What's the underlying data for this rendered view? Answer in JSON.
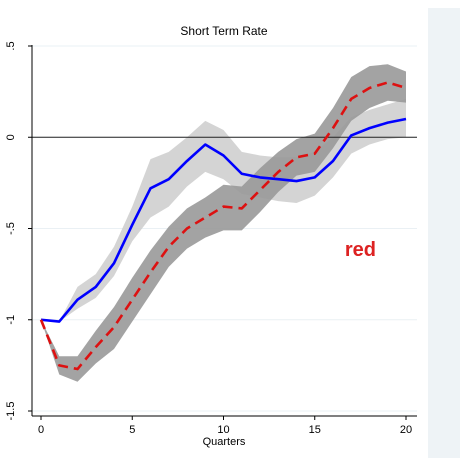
{
  "chart_data": {
    "type": "line",
    "title": "Short Term Rate",
    "xlabel": "Quarters",
    "ylabel": "",
    "xlim": [
      0,
      20
    ],
    "ylim": [
      -1.5,
      0.5
    ],
    "x_ticks": [
      0,
      5,
      10,
      15,
      20
    ],
    "y_ticks": [
      -1.5,
      -1,
      -0.5,
      0,
      0.5
    ],
    "y_tick_labels": [
      "-1.5",
      "-1",
      "-.5",
      "0",
      ".5"
    ],
    "zero_line": 0,
    "grid": "horizontal",
    "x": [
      0,
      1,
      2,
      3,
      4,
      5,
      6,
      7,
      8,
      9,
      10,
      11,
      12,
      13,
      14,
      15,
      16,
      17,
      18,
      19,
      20
    ],
    "series": [
      {
        "style": "solid",
        "color": "#0000ff",
        "values": [
          -1.0,
          -1.01,
          -0.89,
          -0.82,
          -0.69,
          -0.48,
          -0.28,
          -0.23,
          -0.13,
          -0.04,
          -0.1,
          -0.2,
          -0.22,
          -0.23,
          -0.24,
          -0.22,
          -0.13,
          0.01,
          0.05,
          0.08,
          0.1
        ],
        "band_lower": [
          -1.0,
          -1.01,
          -0.94,
          -0.88,
          -0.76,
          -0.57,
          -0.44,
          -0.38,
          -0.27,
          -0.19,
          -0.23,
          -0.31,
          -0.33,
          -0.35,
          -0.36,
          -0.32,
          -0.22,
          -0.09,
          -0.04,
          -0.01,
          0.0
        ],
        "band_upper": [
          -1.0,
          -1.01,
          -0.82,
          -0.75,
          -0.6,
          -0.38,
          -0.12,
          -0.08,
          0.0,
          0.09,
          0.04,
          -0.08,
          -0.1,
          -0.11,
          -0.11,
          -0.08,
          0.0,
          0.11,
          0.15,
          0.18,
          0.21
        ],
        "band_color": "#cccccc"
      },
      {
        "style": "dashed",
        "color": "#dd1111",
        "values": [
          -1.0,
          -1.25,
          -1.27,
          -1.15,
          -1.04,
          -0.89,
          -0.74,
          -0.6,
          -0.5,
          -0.44,
          -0.38,
          -0.39,
          -0.29,
          -0.19,
          -0.11,
          -0.09,
          0.05,
          0.21,
          0.27,
          0.3,
          0.27
        ],
        "band_lower": [
          -1.0,
          -1.3,
          -1.34,
          -1.24,
          -1.16,
          -1.01,
          -0.86,
          -0.71,
          -0.61,
          -0.55,
          -0.51,
          -0.51,
          -0.41,
          -0.3,
          -0.21,
          -0.19,
          -0.06,
          0.09,
          0.16,
          0.2,
          0.19
        ],
        "band_upper": [
          -1.0,
          -1.2,
          -1.2,
          -1.06,
          -0.93,
          -0.77,
          -0.62,
          -0.49,
          -0.39,
          -0.33,
          -0.26,
          -0.27,
          -0.17,
          -0.08,
          -0.01,
          0.02,
          0.16,
          0.33,
          0.39,
          0.4,
          0.36
        ],
        "band_color": "#999999"
      }
    ],
    "annotations": [
      {
        "text": "red",
        "x": 17.5,
        "y": -0.65,
        "color": "#dd2222"
      }
    ]
  }
}
